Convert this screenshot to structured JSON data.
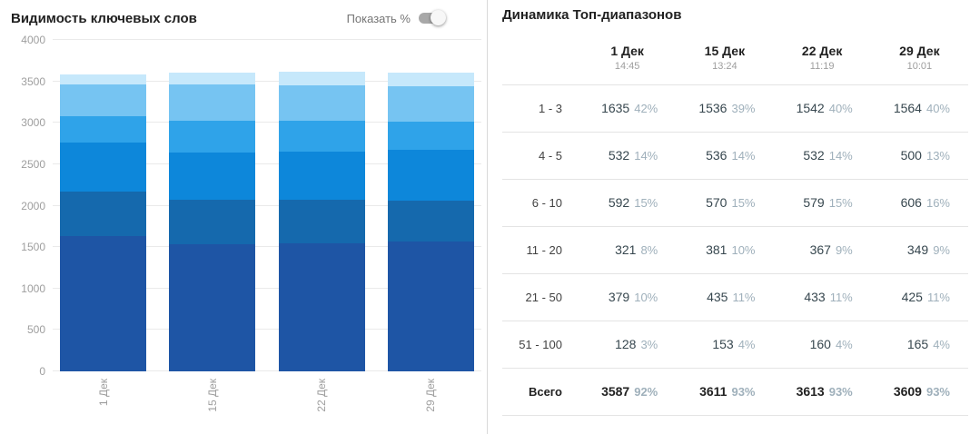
{
  "left_panel": {
    "title": "Видимость ключевых слов",
    "toggle_label": "Показать %",
    "show_percent_enabled": false
  },
  "right_panel": {
    "title": "Динамика Топ-диапазонов"
  },
  "chart_data": {
    "type": "bar",
    "stacked": true,
    "title": "Видимость ключевых слов",
    "categories": [
      "1 Дек",
      "15 Дек",
      "22 Дек",
      "29 Дек"
    ],
    "series": [
      {
        "name": "1 - 3",
        "color": "#1e55a5",
        "values": [
          1635,
          1536,
          1542,
          1564
        ]
      },
      {
        "name": "4 - 5",
        "color": "#1569ad",
        "values": [
          532,
          536,
          532,
          500
        ]
      },
      {
        "name": "6 - 10",
        "color": "#0d87da",
        "values": [
          592,
          570,
          579,
          606
        ]
      },
      {
        "name": "11 - 20",
        "color": "#2fa3e9",
        "values": [
          321,
          381,
          367,
          349
        ]
      },
      {
        "name": "21 - 50",
        "color": "#76c4f2",
        "values": [
          379,
          435,
          433,
          425
        ]
      },
      {
        "name": "51 - 100",
        "color": "#c6e8fb",
        "values": [
          128,
          153,
          160,
          165
        ]
      }
    ],
    "xlabel": "",
    "ylabel": "",
    "ylim": [
      0,
      4000
    ],
    "yticks": [
      0,
      500,
      1000,
      1500,
      2000,
      2500,
      3000,
      3500,
      4000
    ],
    "grid": true,
    "legend_position": "none"
  },
  "table": {
    "columns": [
      {
        "date": "1 Дек",
        "time": "14:45"
      },
      {
        "date": "15 Дек",
        "time": "13:24"
      },
      {
        "date": "22 Дек",
        "time": "11:19"
      },
      {
        "date": "29 Дек",
        "time": "10:01"
      }
    ],
    "rows": [
      {
        "label": "1 - 3",
        "total": false,
        "cells": [
          {
            "value": "1635",
            "pct": "42%"
          },
          {
            "value": "1536",
            "pct": "39%"
          },
          {
            "value": "1542",
            "pct": "40%"
          },
          {
            "value": "1564",
            "pct": "40%"
          }
        ]
      },
      {
        "label": "4 - 5",
        "total": false,
        "cells": [
          {
            "value": "532",
            "pct": "14%"
          },
          {
            "value": "536",
            "pct": "14%"
          },
          {
            "value": "532",
            "pct": "14%"
          },
          {
            "value": "500",
            "pct": "13%"
          }
        ]
      },
      {
        "label": "6 - 10",
        "total": false,
        "cells": [
          {
            "value": "592",
            "pct": "15%"
          },
          {
            "value": "570",
            "pct": "15%"
          },
          {
            "value": "579",
            "pct": "15%"
          },
          {
            "value": "606",
            "pct": "16%"
          }
        ]
      },
      {
        "label": "11 - 20",
        "total": false,
        "cells": [
          {
            "value": "321",
            "pct": "8%"
          },
          {
            "value": "381",
            "pct": "10%"
          },
          {
            "value": "367",
            "pct": "9%"
          },
          {
            "value": "349",
            "pct": "9%"
          }
        ]
      },
      {
        "label": "21 - 50",
        "total": false,
        "cells": [
          {
            "value": "379",
            "pct": "10%"
          },
          {
            "value": "435",
            "pct": "11%"
          },
          {
            "value": "433",
            "pct": "11%"
          },
          {
            "value": "425",
            "pct": "11%"
          }
        ]
      },
      {
        "label": "51 - 100",
        "total": false,
        "cells": [
          {
            "value": "128",
            "pct": "3%"
          },
          {
            "value": "153",
            "pct": "4%"
          },
          {
            "value": "160",
            "pct": "4%"
          },
          {
            "value": "165",
            "pct": "4%"
          }
        ]
      },
      {
        "label": "Всего",
        "total": true,
        "cells": [
          {
            "value": "3587",
            "pct": "92%"
          },
          {
            "value": "3611",
            "pct": "93%"
          },
          {
            "value": "3613",
            "pct": "93%"
          },
          {
            "value": "3609",
            "pct": "93%"
          }
        ]
      }
    ]
  }
}
